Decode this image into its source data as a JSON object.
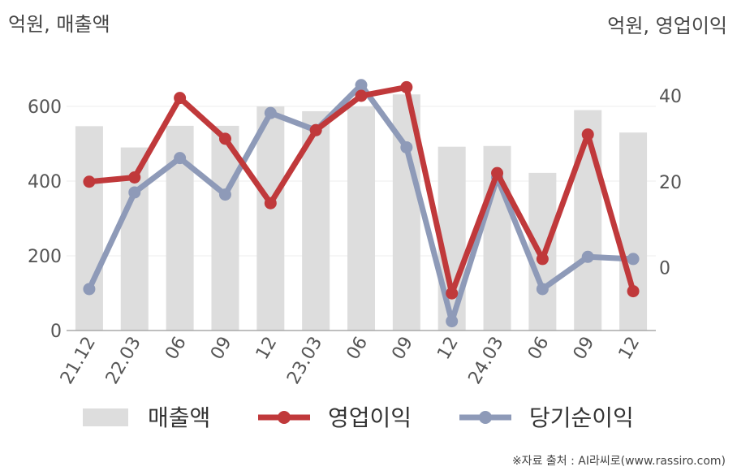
{
  "chart_data": {
    "type": "bar+line",
    "categories": [
      "21.12",
      "22.03",
      "06",
      "09",
      "12",
      "23.03",
      "06",
      "09",
      "12",
      "24.03",
      "06",
      "09",
      "12"
    ],
    "left_unit": "억원, 매출액",
    "right_unit": "억원, 영업이익",
    "left_axis": {
      "ylim": [
        0,
        700
      ],
      "ticks": [
        0,
        200,
        400,
        600
      ]
    },
    "right_axis": {
      "ylim": [
        -15,
        45
      ],
      "ticks": [
        0,
        20,
        40
      ]
    },
    "bars": {
      "name": "매출액",
      "axis": "left",
      "color": "#dddddd",
      "values": [
        547,
        490,
        548,
        548,
        600,
        587,
        600,
        632,
        492,
        494,
        422,
        590,
        530
      ]
    },
    "lines": [
      {
        "name": "영업이익",
        "axis": "right",
        "color": "#c0393b",
        "values": [
          20,
          21,
          39.5,
          30,
          15,
          32,
          40,
          42,
          -6,
          22,
          2,
          31,
          -5.5
        ]
      },
      {
        "name": "당기순이익",
        "axis": "right",
        "color": "#8e9ab8",
        "values": [
          -5,
          17.5,
          25.5,
          17,
          36,
          32,
          42.5,
          28,
          -12.5,
          21,
          -5,
          2.5,
          2
        ]
      }
    ],
    "grid": true,
    "legend_position": "bottom"
  },
  "source_note": "※자료 출처 : AI라씨로(www.rassiro.com)"
}
